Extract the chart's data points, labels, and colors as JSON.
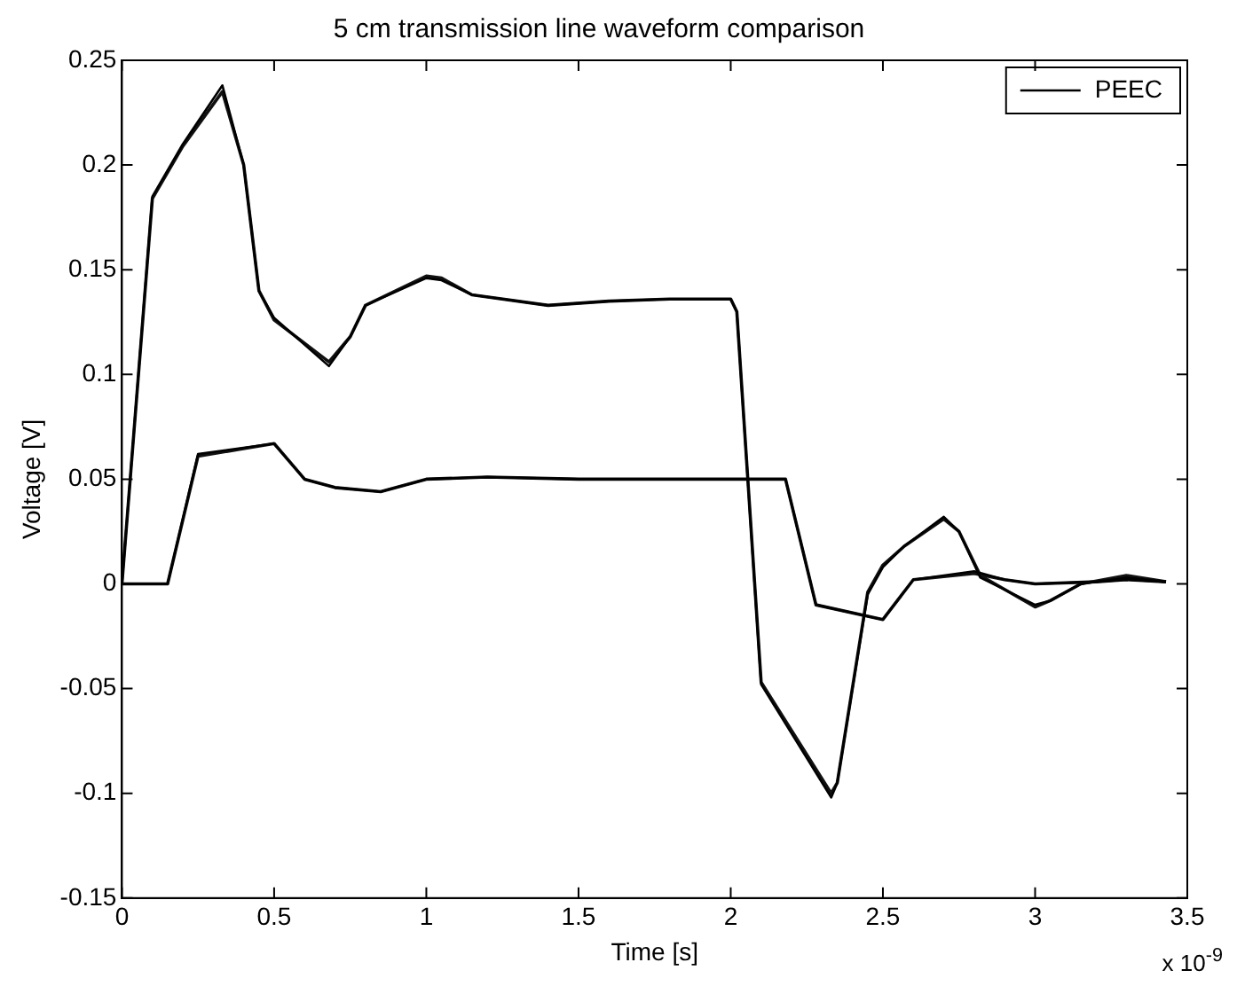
{
  "chart_data": {
    "type": "line",
    "title": "5 cm transmission line waveform comparison",
    "xlabel": "Time [s]",
    "ylabel": "Voltage [V]",
    "annotations": [
      "x 10$^{-9}$"
    ],
    "xlim": [
      0,
      3.5
    ],
    "xticks": [
      0,
      0.5,
      1,
      1.5,
      2,
      2.5,
      3,
      3.5
    ],
    "ylim": [
      -0.15,
      0.25
    ],
    "yticks": [
      -0.15,
      -0.1,
      -0.05,
      0,
      0.05,
      0.1,
      0.15,
      0.2,
      0.25
    ],
    "grid": false,
    "legend": "top right",
    "marker": "none",
    "line_style": "solid",
    "series": [
      {
        "name": "PEEC",
        "color": "#000000",
        "x": [
          0,
          0.1,
          0.2,
          0.33,
          0.4,
          0.45,
          0.5,
          0.68,
          0.75,
          0.8,
          1.0,
          1.05,
          1.15,
          1.4,
          1.6,
          1.8,
          2.0,
          2.02,
          2.1,
          2.33,
          2.35,
          2.45,
          2.5,
          2.57,
          2.7,
          2.75,
          2.82,
          3.0,
          3.05,
          3.15,
          3.3,
          3.43
        ],
        "values": [
          0,
          0.185,
          0.21,
          0.238,
          0.2,
          0.14,
          0.127,
          0.104,
          0.118,
          0.133,
          0.146,
          0.145,
          0.138,
          0.133,
          0.135,
          0.136,
          0.136,
          0.13,
          -0.048,
          -0.102,
          -0.095,
          -0.005,
          0.008,
          0.018,
          0.032,
          0.025,
          0.003,
          -0.01,
          -0.008,
          0,
          0.003,
          0.001
        ]
      },
      {
        "color": "#000000",
        "x": [
          0,
          0.15,
          0.25,
          0.5,
          0.6,
          0.7,
          0.85,
          1.0,
          1.2,
          1.5,
          1.8,
          2.0,
          2.18,
          2.28,
          2.5,
          2.6,
          2.8,
          2.9,
          3.0,
          3.2,
          3.3,
          3.43
        ],
        "values": [
          0,
          0,
          0.062,
          0.067,
          0.05,
          0.046,
          0.044,
          0.05,
          0.051,
          0.05,
          0.05,
          0.05,
          0.05,
          -0.01,
          -0.017,
          0.002,
          0.006,
          0.002,
          0,
          0.001,
          0.002,
          0.001
        ]
      },
      {
        "color": "#111111",
        "x": [
          0,
          0.1,
          0.2,
          0.33,
          0.4,
          0.45,
          0.5,
          0.68,
          0.75,
          0.8,
          1.0,
          1.05,
          1.15,
          1.4,
          1.6,
          1.8,
          2.0,
          2.02,
          2.1,
          2.33,
          2.35,
          2.45,
          2.5,
          2.57,
          2.7,
          2.75,
          2.82,
          3.0,
          3.05,
          3.15,
          3.3,
          3.43
        ],
        "values": [
          0,
          0.184,
          0.209,
          0.235,
          0.2,
          0.14,
          0.126,
          0.106,
          0.118,
          0.133,
          0.147,
          0.146,
          0.138,
          0.133,
          0.135,
          0.136,
          0.136,
          0.13,
          -0.047,
          -0.1,
          -0.095,
          -0.004,
          0.009,
          0.018,
          0.031,
          0.025,
          0.004,
          -0.011,
          -0.008,
          0,
          0.004,
          0.001
        ]
      },
      {
        "color": "#111111",
        "x": [
          0,
          0.15,
          0.25,
          0.5,
          0.6,
          0.7,
          0.85,
          1.0,
          1.2,
          1.5,
          1.8,
          2.0,
          2.18,
          2.28,
          2.5,
          2.6,
          2.8,
          2.9,
          3.0,
          3.2,
          3.3,
          3.43
        ],
        "values": [
          0,
          0,
          0.061,
          0.067,
          0.05,
          0.046,
          0.044,
          0.05,
          0.051,
          0.05,
          0.05,
          0.05,
          0.05,
          -0.01,
          -0.017,
          0.002,
          0.005,
          0.002,
          0,
          0.001,
          0.002,
          0.001
        ]
      }
    ]
  }
}
